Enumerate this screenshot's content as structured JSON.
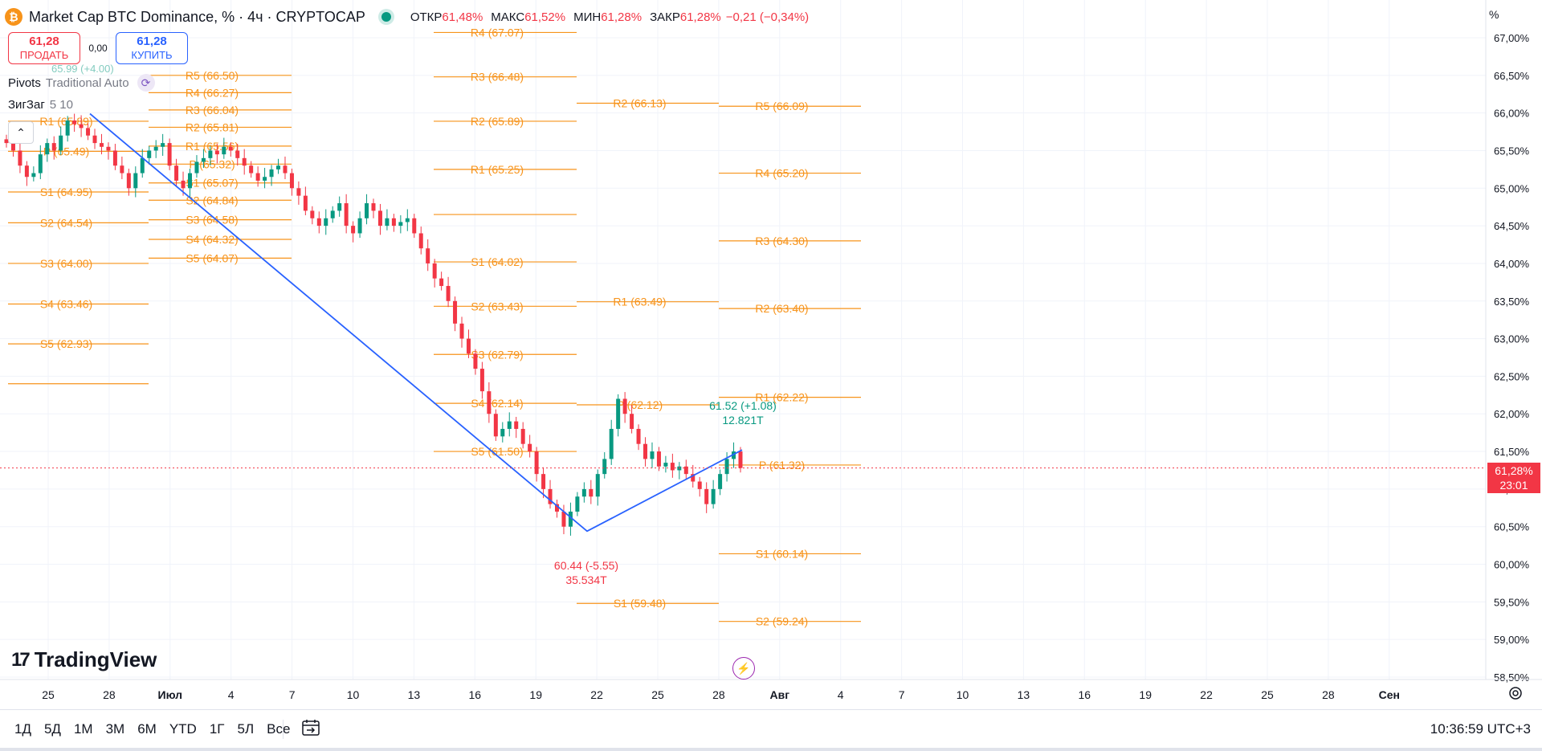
{
  "header": {
    "icon_glyph": "₿",
    "title": "Market Cap BTC Dominance, % · 4ч · CRYPTOCAP",
    "ohlc": [
      {
        "label": "ОТКР",
        "value": "61,48%"
      },
      {
        "label": "МАКС",
        "value": "61,52%"
      },
      {
        "label": "МИН",
        "value": "61,28%"
      },
      {
        "label": "ЗАКР",
        "value": "61,28%"
      }
    ],
    "change": "−0,21 (−0,34%)"
  },
  "trade": {
    "sell_price": "61,28",
    "sell_label": "ПРОДАТЬ",
    "spread": "0,00",
    "buy_price": "61,28",
    "buy_label": "КУПИТЬ"
  },
  "indicators": {
    "pivots_name": "Pivots",
    "pivots_params": "Traditional Auto",
    "zigzag_name": "ЗигЗаг",
    "zigzag_params": "5 10",
    "ghost_label": "65.99 (+4.00)"
  },
  "price_scale": {
    "unit_button": "%",
    "last_price": "61,28%",
    "countdown": "23:01"
  },
  "time_ranges": [
    "1Д",
    "5Д",
    "1М",
    "3М",
    "6М",
    "YTD",
    "1Г",
    "5Л",
    "Все"
  ],
  "clock": "10:36:59 UTC+3",
  "logo_text": "TradingView",
  "colors": {
    "up": "#089981",
    "down": "#f23645",
    "pivot": "#f7931a",
    "zigzag": "#2962ff"
  },
  "chart_data": {
    "type": "candlestick",
    "ylim": [
      58.5,
      67.0
    ],
    "yticks": [
      "58,50%",
      "59,00%",
      "59,50%",
      "60,00%",
      "60,50%",
      "61,00%",
      "61,50%",
      "62,00%",
      "62,50%",
      "63,00%",
      "63,50%",
      "64,00%",
      "64,50%",
      "65,00%",
      "65,50%",
      "66,00%",
      "66,50%",
      "67,00%"
    ],
    "x_axis_labels": [
      "25",
      "28",
      "Июл",
      "4",
      "7",
      "10",
      "13",
      "16",
      "19",
      "22",
      "25",
      "28",
      "Авг",
      "4",
      "7",
      "10",
      "13",
      "16",
      "19",
      "22",
      "25",
      "28",
      "Сен"
    ],
    "close_path": [
      65.6,
      65.5,
      65.3,
      65.15,
      65.2,
      65.45,
      65.6,
      65.5,
      65.7,
      65.9,
      65.85,
      65.8,
      65.7,
      65.6,
      65.55,
      65.5,
      65.3,
      65.2,
      65.0,
      65.2,
      65.4,
      65.5,
      65.55,
      65.6,
      65.3,
      65.1,
      65.0,
      65.2,
      65.35,
      65.4,
      65.5,
      65.45,
      65.55,
      65.5,
      65.4,
      65.3,
      65.2,
      65.1,
      65.15,
      65.25,
      65.3,
      65.2,
      65.0,
      64.9,
      64.7,
      64.6,
      64.5,
      64.6,
      64.7,
      64.8,
      64.5,
      64.4,
      64.6,
      64.8,
      64.7,
      64.5,
      64.6,
      64.5,
      64.55,
      64.6,
      64.4,
      64.2,
      64.0,
      63.8,
      63.7,
      63.5,
      63.2,
      63.0,
      62.8,
      62.6,
      62.3,
      62.0,
      61.7,
      61.8,
      61.9,
      61.8,
      61.6,
      61.5,
      61.2,
      61.0,
      60.8,
      60.7,
      60.5,
      60.7,
      60.9,
      61.0,
      60.9,
      61.2,
      61.4,
      61.8,
      62.2,
      62.0,
      61.8,
      61.6,
      61.4,
      61.5,
      61.3,
      61.35,
      61.25,
      61.3,
      61.2,
      61.1,
      61.0,
      60.8,
      61.0,
      61.2,
      61.4,
      61.5,
      61.28
    ],
    "zigzag": [
      {
        "x": "27 июн",
        "y": 65.99
      },
      {
        "x": "21 июл",
        "y": 60.44
      },
      {
        "x": "29 июл",
        "y": 61.52
      }
    ],
    "zigzag_labels": [
      {
        "text": "60.44 (-5.55)",
        "sub": "35.534T",
        "color": "#f23645"
      },
      {
        "text": "61.52 (+1.08)",
        "sub": "12.821T",
        "color": "#089981"
      }
    ],
    "pivot_groups": [
      {
        "labels": [
          [
            "S1 (64.95)",
            64.95
          ],
          [
            "S2 (64.54)",
            64.54
          ],
          [
            "S3 (64.00)",
            64.0
          ],
          [
            "S4 (63.46)",
            63.46
          ],
          [
            "S5 (62.93)",
            62.93
          ],
          [
            "R1 (65.89)",
            65.89
          ],
          [
            "P (65.49)",
            65.49
          ]
        ],
        "lines": [
          65.89,
          65.49,
          64.95,
          64.54,
          64.0,
          63.46,
          62.93,
          62.4
        ]
      },
      {
        "labels": [
          [
            "R5 (66.50)",
            66.5
          ],
          [
            "R4 (66.27)",
            66.27
          ],
          [
            "R3 (66.04)",
            66.04
          ],
          [
            "R2 (65.81)",
            65.81
          ],
          [
            "R1 (65.56)",
            65.56
          ],
          [
            "P (65.32)",
            65.32
          ],
          [
            "S1 (65.07)",
            65.07
          ],
          [
            "S2 (64.84)",
            64.84
          ],
          [
            "S3 (64.58)",
            64.58
          ],
          [
            "S4 (64.32)",
            64.32
          ],
          [
            "S5 (64.07)",
            64.07
          ]
        ],
        "lines": [
          66.5,
          66.27,
          66.04,
          65.81,
          65.56,
          65.32,
          65.07,
          64.84,
          64.58,
          64.32,
          64.07
        ]
      },
      {
        "labels": [
          [
            "R4 (67.07)",
            67.07
          ],
          [
            "R3 (66.48)",
            66.48
          ],
          [
            "R2 (65.89)",
            65.89
          ],
          [
            "R1 (65.25)",
            65.25
          ],
          [
            "S1 (64.02)",
            64.02
          ],
          [
            "S2 (63.43)",
            63.43
          ],
          [
            "S3 (62.79)",
            62.79
          ],
          [
            "S4 (62.14)",
            62.14
          ],
          [
            "S5 (61.50)",
            61.5
          ]
        ],
        "lines": [
          67.07,
          66.48,
          65.89,
          65.25,
          64.65,
          64.02,
          63.43,
          62.79,
          62.14,
          61.5
        ]
      },
      {
        "labels": [
          [
            "R2 (66.13)",
            66.13
          ],
          [
            "R1 (63.49)",
            63.49
          ],
          [
            "P (62.12)",
            62.12
          ],
          [
            "S1 (59.48)",
            59.48
          ]
        ],
        "lines": [
          66.13,
          63.49,
          62.12,
          59.48
        ]
      },
      {
        "labels": [
          [
            "R5 (66.09)",
            66.09
          ],
          [
            "R4 (65.20)",
            65.2
          ],
          [
            "R3 (64.30)",
            64.3
          ],
          [
            "R2 (63.40)",
            63.4
          ],
          [
            "R1 (62.22)",
            62.22
          ],
          [
            "P (61.32)",
            61.32
          ],
          [
            "S1 (60.14)",
            60.14
          ],
          [
            "S2 (59.24)",
            59.24
          ]
        ],
        "lines": [
          66.09,
          65.2,
          64.3,
          63.4,
          62.22,
          61.32,
          60.14,
          59.24
        ]
      }
    ],
    "last_price": 61.28
  }
}
